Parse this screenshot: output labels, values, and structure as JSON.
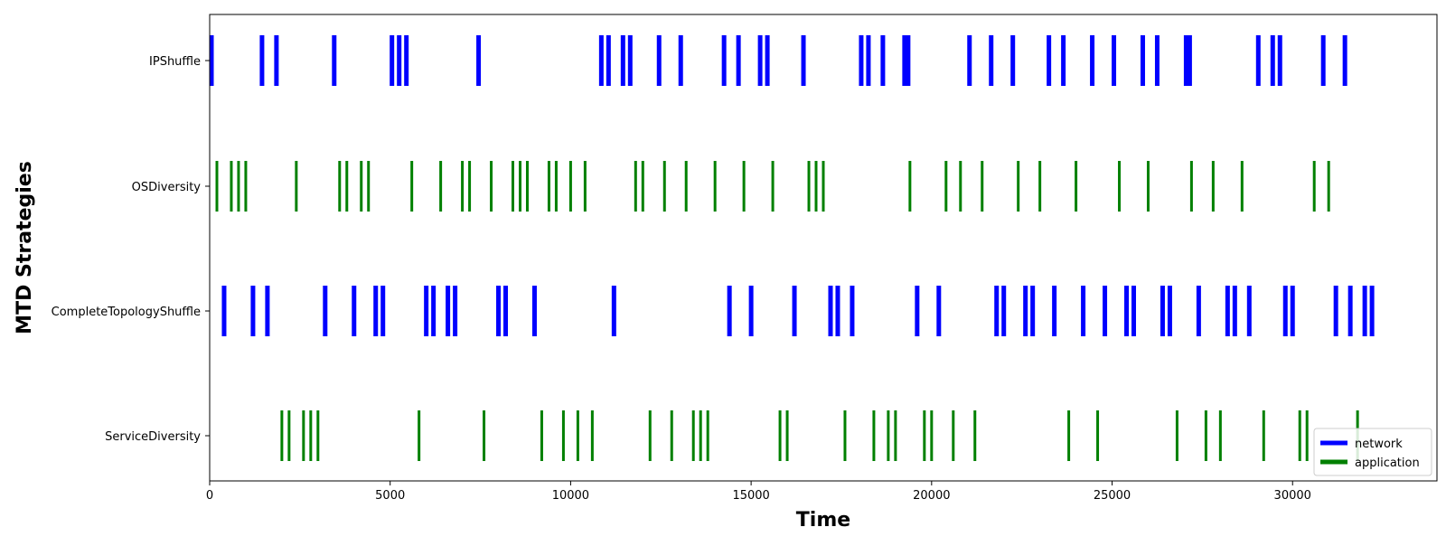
{
  "chart_data": {
    "type": "event-timeline",
    "xlabel": "Time",
    "ylabel": "MTD Strategies",
    "xlim": [
      0,
      34000
    ],
    "x_ticks": [
      0,
      5000,
      10000,
      15000,
      20000,
      25000,
      30000
    ],
    "grid": false,
    "legend_position": "bottom-right",
    "colors": {
      "network": "#0000ff",
      "application": "#008000"
    },
    "legend": [
      {
        "name": "network",
        "color": "#0000ff"
      },
      {
        "name": "application",
        "color": "#008000"
      }
    ],
    "categories": [
      "IPShuffle",
      "OSDiversity",
      "CompleteTopologyShuffle",
      "ServiceDiversity"
    ],
    "series": [
      {
        "name": "IPShuffle",
        "layer": "network",
        "events": [
          50,
          1450,
          1850,
          3450,
          5050,
          5250,
          5450,
          7450,
          10850,
          11050,
          11450,
          11650,
          12450,
          13050,
          14250,
          14650,
          15250,
          15450,
          16450,
          18050,
          18250,
          18650,
          19250,
          19350,
          21050,
          21650,
          22250,
          23250,
          23650,
          24450,
          25050,
          25850,
          26250,
          27050,
          27150,
          29050,
          29450,
          29650,
          30850,
          31450
        ]
      },
      {
        "name": "OSDiversity",
        "layer": "application",
        "events": [
          200,
          600,
          800,
          1000,
          2400,
          3600,
          3800,
          4200,
          4400,
          5600,
          6400,
          7000,
          7200,
          7800,
          8400,
          8600,
          8800,
          9400,
          9600,
          10000,
          10400,
          11800,
          12000,
          12600,
          13200,
          14000,
          14800,
          15600,
          16600,
          16800,
          17000,
          19400,
          20400,
          20800,
          21400,
          22400,
          23000,
          24000,
          25200,
          26000,
          27200,
          27800,
          28600,
          30600,
          31000
        ]
      },
      {
        "name": "CompleteTopologyShuffle",
        "layer": "network",
        "events": [
          400,
          1200,
          1600,
          3200,
          4000,
          4600,
          4800,
          6000,
          6200,
          6600,
          6800,
          8000,
          8200,
          9000,
          11200,
          14400,
          15000,
          16200,
          17200,
          17400,
          17800,
          19600,
          20200,
          21800,
          22000,
          22600,
          22800,
          23400,
          24200,
          24800,
          25400,
          25600,
          26400,
          26600,
          27400,
          28200,
          28400,
          28800,
          29800,
          30000,
          31200,
          31600,
          32000,
          32200
        ]
      },
      {
        "name": "ServiceDiversity",
        "layer": "application",
        "events": [
          2000,
          2200,
          2600,
          2800,
          3000,
          5800,
          7600,
          9200,
          9800,
          10200,
          10600,
          12200,
          12800,
          13400,
          13600,
          13800,
          15800,
          16000,
          17600,
          18400,
          18800,
          19000,
          19800,
          20000,
          20600,
          21200,
          23800,
          24600,
          26800,
          27600,
          28000,
          29200,
          30200,
          30400,
          31800
        ]
      }
    ]
  }
}
